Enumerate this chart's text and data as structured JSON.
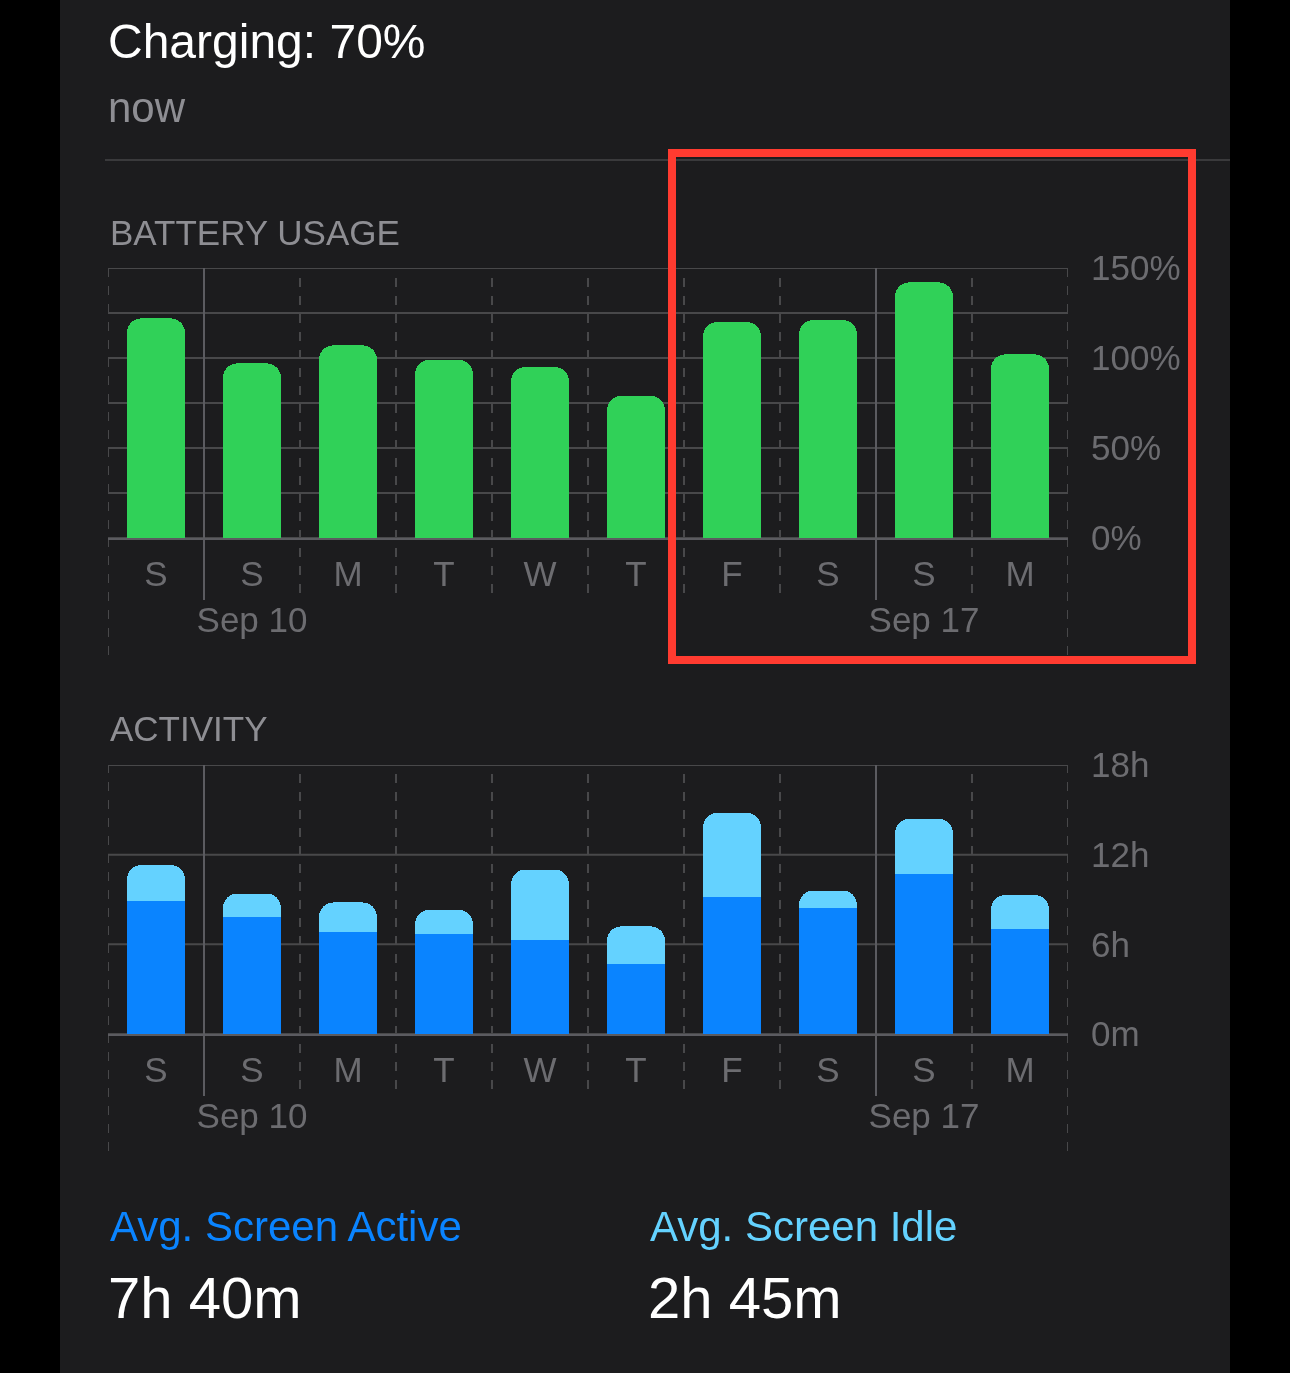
{
  "chart_data": [
    {
      "type": "other",
      "title": "Charging: 70%",
      "subtitle": "now"
    },
    {
      "type": "bar",
      "title": "BATTERY USAGE",
      "categories": [
        "S",
        "S\nSep 10",
        "M",
        "T",
        "W",
        "T",
        "F",
        "S",
        "S\nSep 17",
        "M"
      ],
      "values": [
        122,
        97,
        107,
        99,
        95,
        79,
        120,
        121,
        142,
        102
      ],
      "color": "#30d158",
      "ylim": [
        0,
        150
      ],
      "yticks": [
        {
          "value": 0,
          "label": "0%"
        },
        {
          "value": 25,
          "label": null
        },
        {
          "value": 50,
          "label": "50%"
        },
        {
          "value": 75,
          "label": null
        },
        {
          "value": 100,
          "label": "100%"
        },
        {
          "value": 125,
          "label": null
        },
        {
          "value": 150,
          "label": "150%"
        }
      ],
      "grid": true
    },
    {
      "type": "bar",
      "title": "ACTIVITY",
      "stacked": true,
      "categories": [
        "S",
        "S\nSep 10",
        "M",
        "T",
        "W",
        "T",
        "F",
        "S",
        "S\nSep 17",
        "M"
      ],
      "series": [
        {
          "name": "Avg. Screen Active",
          "color": "#0a84ff",
          "values": [
            8.9,
            7.8,
            6.8,
            6.7,
            6.3,
            4.7,
            9.2,
            8.4,
            10.7,
            7.0
          ]
        },
        {
          "name": "Avg. Screen Idle",
          "color": "#64d2ff",
          "values": [
            2.4,
            1.6,
            2.0,
            1.6,
            4.7,
            2.5,
            5.6,
            1.2,
            3.7,
            2.3
          ]
        }
      ],
      "ylim": [
        0,
        18
      ],
      "yticks": [
        {
          "value": 0,
          "label": "0m"
        },
        {
          "value": 6,
          "label": "6h"
        },
        {
          "value": 12,
          "label": "12h"
        },
        {
          "value": 18,
          "label": "18h"
        }
      ],
      "grid": true,
      "legend": "bottom",
      "annotations": [
        "7h 40m",
        "2h 45m"
      ]
    }
  ]
}
